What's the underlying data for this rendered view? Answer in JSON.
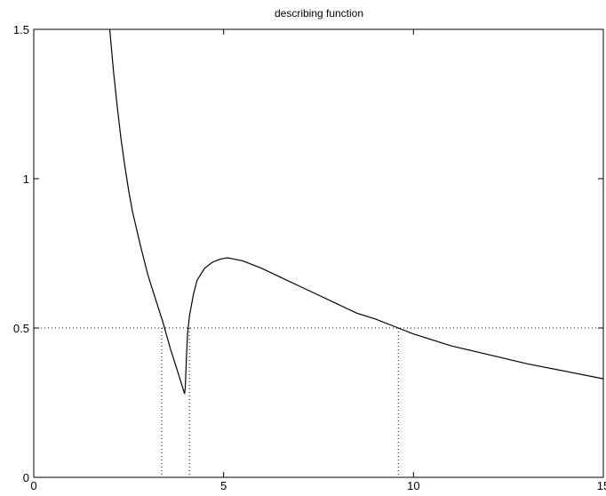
{
  "chart_data": {
    "type": "line",
    "title": "describing function",
    "xlabel": "",
    "ylabel": "",
    "xlim": [
      0,
      15
    ],
    "ylim": [
      0,
      1.5
    ],
    "xticks": [
      0,
      5,
      10,
      15
    ],
    "xtick_labels": [
      "0",
      "5",
      "10",
      "15"
    ],
    "yticks": [
      0,
      0.5,
      1,
      1.5
    ],
    "ytick_labels": [
      "0",
      "0.5",
      "1",
      "1.5"
    ],
    "grid": false,
    "series": [
      {
        "x": [
          2.0,
          2.1,
          2.2,
          2.3,
          2.4,
          2.5,
          2.6,
          2.8,
          3.0,
          3.2,
          3.4,
          3.6,
          3.8,
          3.97,
          3.99,
          4.02,
          4.05,
          4.1,
          4.2,
          4.3,
          4.5,
          4.7,
          4.9,
          5.1,
          5.3,
          5.5,
          5.8,
          6.0,
          6.5,
          7.0,
          7.5,
          8.0,
          8.5,
          9.0,
          9.6,
          10.0,
          11.0,
          12.0,
          13.0,
          14.0,
          15.0
        ],
        "y": [
          1.5,
          1.36,
          1.24,
          1.13,
          1.04,
          0.96,
          0.89,
          0.78,
          0.68,
          0.6,
          0.52,
          0.43,
          0.35,
          0.28,
          0.3,
          0.4,
          0.48,
          0.54,
          0.61,
          0.66,
          0.7,
          0.72,
          0.73,
          0.735,
          0.73,
          0.725,
          0.71,
          0.7,
          0.67,
          0.64,
          0.61,
          0.58,
          0.55,
          0.53,
          0.5,
          0.48,
          0.44,
          0.41,
          0.38,
          0.355,
          0.33
        ]
      }
    ],
    "reference_lines": {
      "horizontal": [
        {
          "y": 0.5,
          "style": "dotted"
        }
      ],
      "vertical": [
        {
          "x": 3.37,
          "y_top": 0.5,
          "style": "dotted"
        },
        {
          "x": 4.1,
          "y_top": 0.5,
          "style": "dotted"
        },
        {
          "x": 9.6,
          "y_top": 0.5,
          "style": "dotted"
        }
      ]
    },
    "colors": {
      "line": "#000000",
      "axes": "#000000"
    }
  }
}
